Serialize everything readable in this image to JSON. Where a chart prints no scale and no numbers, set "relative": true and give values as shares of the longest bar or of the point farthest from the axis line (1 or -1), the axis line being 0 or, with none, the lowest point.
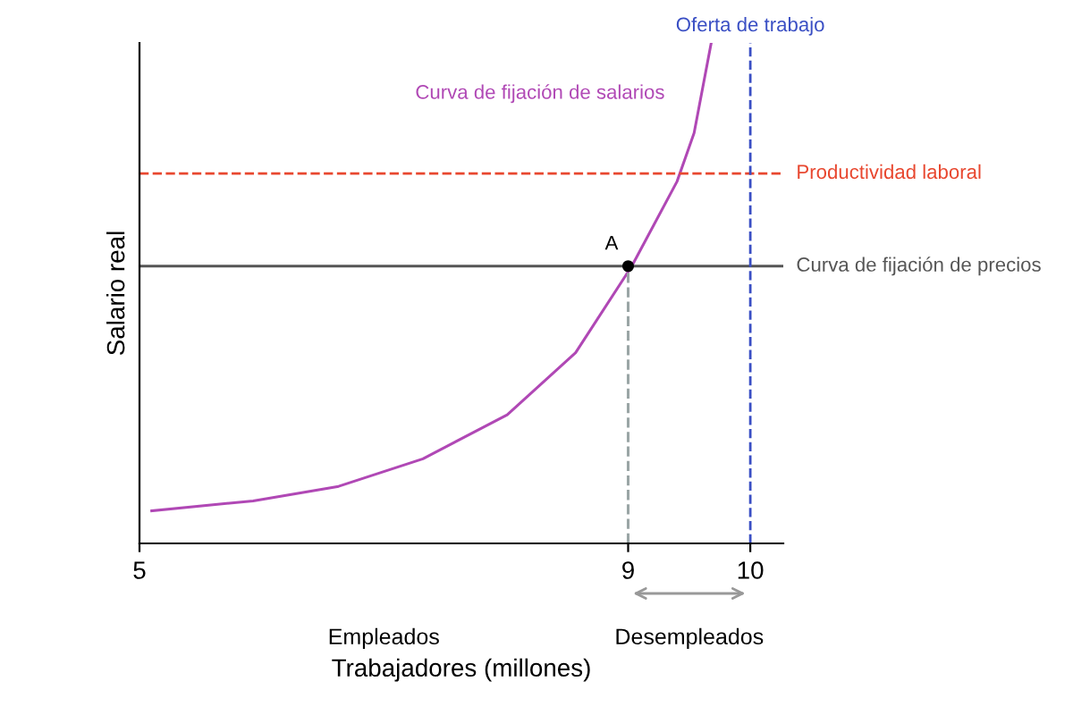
{
  "chart_data": {
    "type": "line",
    "relative": true,
    "xlabel": "Trabajadores (millones)",
    "ylabel": "Salario real",
    "xlim": [
      5,
      10.27
    ],
    "xticks": [
      5,
      9,
      10
    ],
    "grid": false,
    "series": [
      {
        "name": "Curva de fijación de salarios",
        "color": "#b048b5",
        "x": [
          5.1,
          5.93,
          6.63,
          7.32,
          8.01,
          8.57,
          9.03,
          9.4,
          9.54,
          9.68
        ],
        "values": [
          0.065,
          0.085,
          0.114,
          0.169,
          0.257,
          0.381,
          0.554,
          0.723,
          0.82,
          1
        ]
      },
      {
        "type": "line",
        "color": "#9aa5a5",
        "line_style": "dashed",
        "x": [
          9,
          9
        ],
        "values": [
          0,
          0.554
        ]
      },
      {
        "type": "scatter",
        "color": "#000000",
        "marker": "circle",
        "x": [
          9
        ],
        "values": [
          0.554
        ]
      }
    ],
    "ref_lines": [
      {
        "axis": "y",
        "value": 0.554,
        "label": "Curva de fijación de precios",
        "color": "#555555",
        "line_style": "solid"
      },
      {
        "axis": "y",
        "value": 0.739,
        "label": "Productividad laboral",
        "color": "#e8472f",
        "line_style": "dashed"
      },
      {
        "axis": "x",
        "value": 10,
        "label": "Oferta de trabajo",
        "color": "#3a4fc4",
        "line_style": "dashed"
      }
    ],
    "annotations": [
      {
        "text": "A",
        "x": 9,
        "y": 0.554
      },
      "Empleados",
      "Desempleados"
    ]
  }
}
